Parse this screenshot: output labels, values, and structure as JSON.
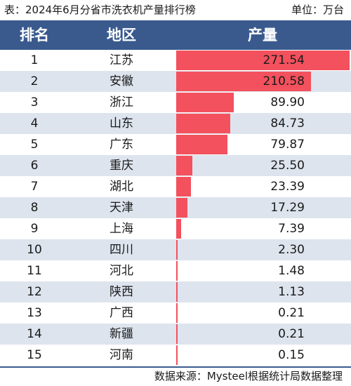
{
  "caption": {
    "title": "表：2024年6月分省市洗衣机产量排行榜",
    "unit": "单位：万台"
  },
  "source": "数据来源：Mysteel根据统计局数据整理",
  "colors": {
    "header_bg": "#3a5a8e",
    "bar": "#f2515d",
    "stripe": "#dde4ee"
  },
  "chart_data": {
    "type": "table",
    "columns": [
      "排名",
      "地区",
      "产量"
    ],
    "rows": [
      {
        "rank": "1",
        "region": "江苏",
        "value": 271.54,
        "value_label": "271.54"
      },
      {
        "rank": "2",
        "region": "安徽",
        "value": 210.58,
        "value_label": "210.58"
      },
      {
        "rank": "3",
        "region": "浙江",
        "value": 89.9,
        "value_label": "89.90"
      },
      {
        "rank": "4",
        "region": "山东",
        "value": 84.73,
        "value_label": "84.73"
      },
      {
        "rank": "5",
        "region": "广东",
        "value": 79.87,
        "value_label": "79.87"
      },
      {
        "rank": "6",
        "region": "重庆",
        "value": 25.5,
        "value_label": "25.50"
      },
      {
        "rank": "7",
        "region": "湖北",
        "value": 23.39,
        "value_label": "23.39"
      },
      {
        "rank": "8",
        "region": "天津",
        "value": 17.29,
        "value_label": "17.29"
      },
      {
        "rank": "9",
        "region": "上海",
        "value": 7.39,
        "value_label": "7.39"
      },
      {
        "rank": "10",
        "region": "四川",
        "value": 2.3,
        "value_label": "2.30"
      },
      {
        "rank": "11",
        "region": "河北",
        "value": 1.48,
        "value_label": "1.48"
      },
      {
        "rank": "12",
        "region": "陕西",
        "value": 1.13,
        "value_label": "1.13"
      },
      {
        "rank": "13",
        "region": "广西",
        "value": 0.21,
        "value_label": "0.21"
      },
      {
        "rank": "14",
        "region": "新疆",
        "value": 0.21,
        "value_label": "0.21"
      },
      {
        "rank": "15",
        "region": "河南",
        "value": 0.15,
        "value_label": "0.15"
      }
    ]
  }
}
